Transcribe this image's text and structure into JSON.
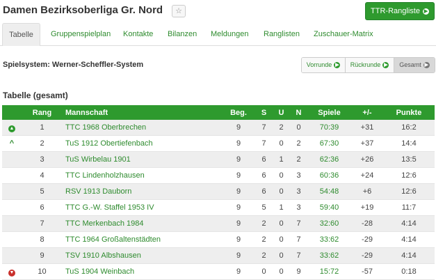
{
  "header": {
    "title": "Damen Bezirksoberliga Gr. Nord",
    "ttr_button": "TTR-Rangliste"
  },
  "tabs": [
    {
      "label": "Tabelle",
      "active": true
    },
    {
      "label": "Gruppenspielplan"
    },
    {
      "label": "Kontakte"
    },
    {
      "label": "Bilanzen"
    },
    {
      "label": "Meldungen"
    },
    {
      "label": "Ranglisten"
    },
    {
      "label": "Zuschauer-Matrix"
    }
  ],
  "spielsystem": "Spielsystem: Werner-Scheffler-System",
  "round_buttons": [
    {
      "label": "Vorrunde"
    },
    {
      "label": "Rückrunde"
    },
    {
      "label": "Gesamt",
      "active": true
    }
  ],
  "section_title": "Tabelle (gesamt)",
  "table": {
    "headers": [
      "",
      "Rang",
      "Mannschaft",
      "Beg.",
      "S",
      "U",
      "N",
      "Spiele",
      "+/-",
      "Punkte"
    ],
    "rows": [
      {
        "indicator": "promote-double-icon",
        "rang": "1",
        "team": "TTC 1968 Oberbrechen",
        "beg": "9",
        "s": "7",
        "u": "2",
        "n": "0",
        "spiele": "70:39",
        "diff": "+31",
        "punkte": "16:2"
      },
      {
        "indicator": "promote-icon",
        "rang": "2",
        "team": "TuS 1912 Obertiefenbach",
        "beg": "9",
        "s": "7",
        "u": "0",
        "n": "2",
        "spiele": "67:30",
        "diff": "+37",
        "punkte": "14:4"
      },
      {
        "indicator": "",
        "rang": "3",
        "team": "TuS Wirbelau 1901",
        "beg": "9",
        "s": "6",
        "u": "1",
        "n": "2",
        "spiele": "62:36",
        "diff": "+26",
        "punkte": "13:5"
      },
      {
        "indicator": "",
        "rang": "4",
        "team": "TTC Lindenholzhausen",
        "beg": "9",
        "s": "6",
        "u": "0",
        "n": "3",
        "spiele": "60:36",
        "diff": "+24",
        "punkte": "12:6"
      },
      {
        "indicator": "",
        "rang": "5",
        "team": "RSV 1913 Dauborn",
        "beg": "9",
        "s": "6",
        "u": "0",
        "n": "3",
        "spiele": "54:48",
        "diff": "+6",
        "punkte": "12:6"
      },
      {
        "indicator": "",
        "rang": "6",
        "team": "TTC G.-W. Staffel 1953 IV",
        "beg": "9",
        "s": "5",
        "u": "1",
        "n": "3",
        "spiele": "59:40",
        "diff": "+19",
        "punkte": "11:7"
      },
      {
        "indicator": "",
        "rang": "7",
        "team": "TTC Merkenbach 1984",
        "beg": "9",
        "s": "2",
        "u": "0",
        "n": "7",
        "spiele": "32:60",
        "diff": "-28",
        "punkte": "4:14"
      },
      {
        "indicator": "",
        "rang": "8",
        "team": "TTC 1964 Großaltenstädten",
        "beg": "9",
        "s": "2",
        "u": "0",
        "n": "7",
        "spiele": "33:62",
        "diff": "-29",
        "punkte": "4:14"
      },
      {
        "indicator": "",
        "rang": "9",
        "team": "TSV 1910 Albshausen",
        "beg": "9",
        "s": "2",
        "u": "0",
        "n": "7",
        "spiele": "33:62",
        "diff": "-29",
        "punkte": "4:14"
      },
      {
        "indicator": "relegate-icon",
        "rang": "10",
        "team": "TuS 1904 Weinbach",
        "beg": "9",
        "s": "0",
        "u": "0",
        "n": "9",
        "spiele": "15:72",
        "diff": "-57",
        "punkte": "0:18"
      }
    ]
  },
  "colors": {
    "accent": "#2e9a2e",
    "down": "#c9302c"
  }
}
